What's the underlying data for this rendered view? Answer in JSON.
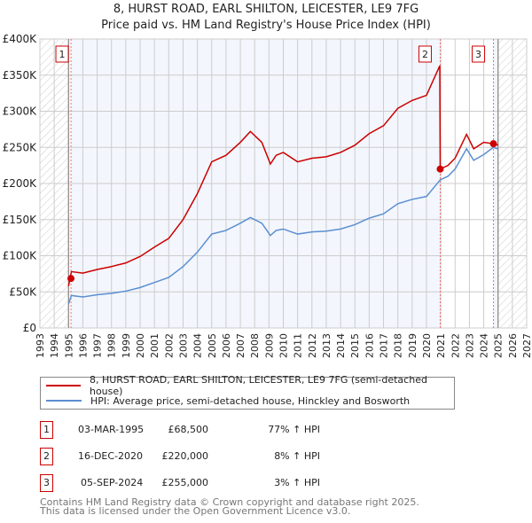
{
  "title": "8, HURST ROAD, EARL SHILTON, LEICESTER, LE9 7FG",
  "subtitle": "Price paid vs. HM Land Registry's House Price Index (HPI)",
  "chart_data": {
    "type": "line",
    "xlim": [
      1993,
      2027
    ],
    "ylim": [
      0,
      400000
    ],
    "y_ticks": [
      0,
      50000,
      100000,
      150000,
      200000,
      250000,
      300000,
      350000,
      400000
    ],
    "y_tick_labels": [
      "£0",
      "£50K",
      "£100K",
      "£150K",
      "£200K",
      "£250K",
      "£300K",
      "£350K",
      "£400K"
    ],
    "x_ticks": [
      1993,
      1994,
      1995,
      1996,
      1997,
      1998,
      1999,
      2000,
      2001,
      2002,
      2003,
      2004,
      2005,
      2006,
      2007,
      2008,
      2009,
      2010,
      2011,
      2012,
      2013,
      2014,
      2015,
      2016,
      2017,
      2018,
      2019,
      2020,
      2021,
      2022,
      2023,
      2024,
      2025,
      2026,
      2027
    ],
    "grid": true,
    "data_range": [
      1995,
      2025
    ],
    "series": [
      {
        "name": "8, HURST ROAD, EARL SHILTON, LEICESTER, LE9 7FG (semi-detached house)",
        "color": "#cc0000",
        "x": [
          1995.0,
          1995.2,
          1996,
          1997,
          1998,
          1999,
          2000,
          2001,
          2002,
          2003,
          2004,
          2005,
          2006,
          2007,
          2007.7,
          2008.5,
          2009.1,
          2009.5,
          2010,
          2011,
          2012,
          2013,
          2014,
          2015,
          2016,
          2017,
          2018,
          2019,
          2020,
          2020.93,
          2020.96,
          2021.5,
          2022,
          2022.8,
          2023.3,
          2024,
          2024.67,
          2025
        ],
        "y": [
          58000,
          78000,
          76000,
          81000,
          85000,
          90000,
          99000,
          112000,
          124000,
          150000,
          186000,
          230000,
          239000,
          257000,
          272000,
          257000,
          227000,
          239000,
          243000,
          230000,
          235000,
          237000,
          243000,
          253000,
          269000,
          280000,
          304000,
          315000,
          322000,
          363000,
          220000,
          225000,
          235000,
          268000,
          248000,
          257000,
          255000,
          253000
        ]
      },
      {
        "name": "HPI: Average price, semi-detached house, Hinckley and Bosworth",
        "color": "#5b8fd0",
        "x": [
          1995.0,
          1995.2,
          1996,
          1997,
          1998,
          1999,
          2000,
          2001,
          2002,
          2003,
          2004,
          2005,
          2006,
          2007,
          2007.7,
          2008.5,
          2009.1,
          2009.5,
          2010,
          2011,
          2012,
          2013,
          2014,
          2015,
          2016,
          2017,
          2018,
          2019,
          2020,
          2020.96,
          2021.5,
          2022,
          2022.8,
          2023.3,
          2024,
          2024.67,
          2025
        ],
        "y": [
          33000,
          45000,
          43000,
          46000,
          48000,
          51000,
          56000,
          63000,
          70000,
          85000,
          105000,
          130000,
          135000,
          145000,
          153000,
          145000,
          128000,
          135000,
          137000,
          130000,
          133000,
          134000,
          137000,
          143000,
          152000,
          158000,
          172000,
          178000,
          182000,
          205000,
          210000,
          220000,
          248000,
          232000,
          240000,
          250000,
          248000
        ]
      }
    ],
    "sales": [
      {
        "label": "1",
        "x": 1995.17,
        "value": 68500
      },
      {
        "label": "2",
        "x": 2020.96,
        "value": 220000
      },
      {
        "label": "3",
        "x": 2024.68,
        "value": 255000
      }
    ]
  },
  "legend": {
    "items": [
      {
        "label": "8, HURST ROAD, EARL SHILTON, LEICESTER, LE9 7FG (semi-detached house)",
        "color": "#cc0000"
      },
      {
        "label": "HPI: Average price, semi-detached house, Hinckley and Bosworth",
        "color": "#5b8fd0"
      }
    ]
  },
  "transactions": [
    {
      "num": "1",
      "date": "03-MAR-1995",
      "price": "£68,500",
      "hpi": "77% ↑ HPI"
    },
    {
      "num": "2",
      "date": "16-DEC-2020",
      "price": "£220,000",
      "hpi": "8% ↑ HPI"
    },
    {
      "num": "3",
      "date": "05-SEP-2024",
      "price": "£255,000",
      "hpi": "3% ↑ HPI"
    }
  ],
  "footer": [
    "Contains HM Land Registry data © Crown copyright and database right 2025.",
    "This data is licensed under the Open Government Licence v3.0."
  ]
}
